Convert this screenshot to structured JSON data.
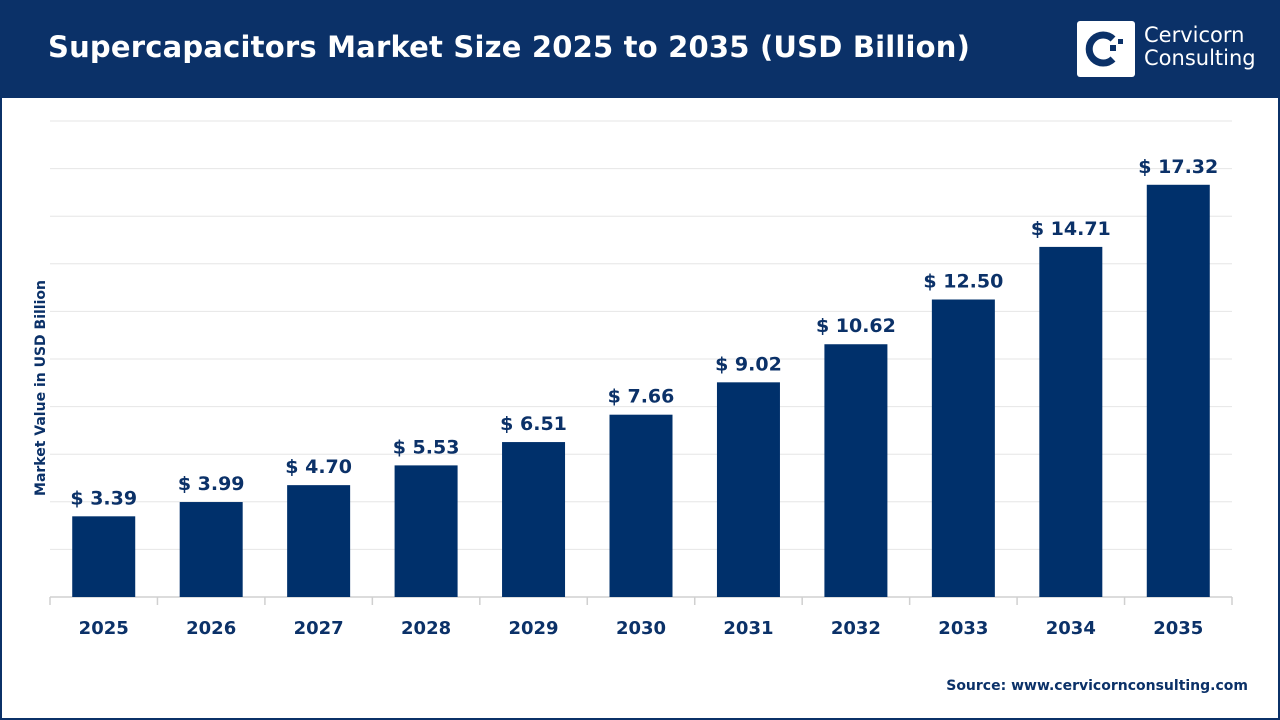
{
  "header": {
    "title": "Supercapacitors Market Size 2025 to 2035 (USD Billion)"
  },
  "logo": {
    "line1": "Cervicorn",
    "line2": "Consulting"
  },
  "source": "Source: www.cervicornconsulting.com",
  "colors": {
    "bar": "#00306b",
    "header": "#0b3168",
    "grid": "#e6e6e6"
  },
  "chart_data": {
    "type": "bar",
    "title": "Supercapacitors Market Size 2025 to 2035 (USD Billion)",
    "xlabel": "",
    "ylabel": "Market Value in USD Billion",
    "categories": [
      "2025",
      "2026",
      "2027",
      "2028",
      "2029",
      "2030",
      "2031",
      "2032",
      "2033",
      "2034",
      "2035"
    ],
    "values": [
      3.39,
      3.99,
      4.7,
      5.53,
      6.51,
      7.66,
      9.02,
      10.62,
      12.5,
      14.71,
      17.32
    ],
    "data_labels": [
      "$ 3.39",
      "$ 3.99",
      "$ 4.70",
      "$ 5.53",
      "$ 6.51",
      "$ 7.66",
      "$ 9.02",
      "$ 10.62",
      "$ 12.50",
      "$ 14.71",
      "$ 17.32"
    ],
    "ylim": [
      0,
      20
    ],
    "ytick_step": 2,
    "grid": true,
    "y_tick_labels_shown": false
  }
}
